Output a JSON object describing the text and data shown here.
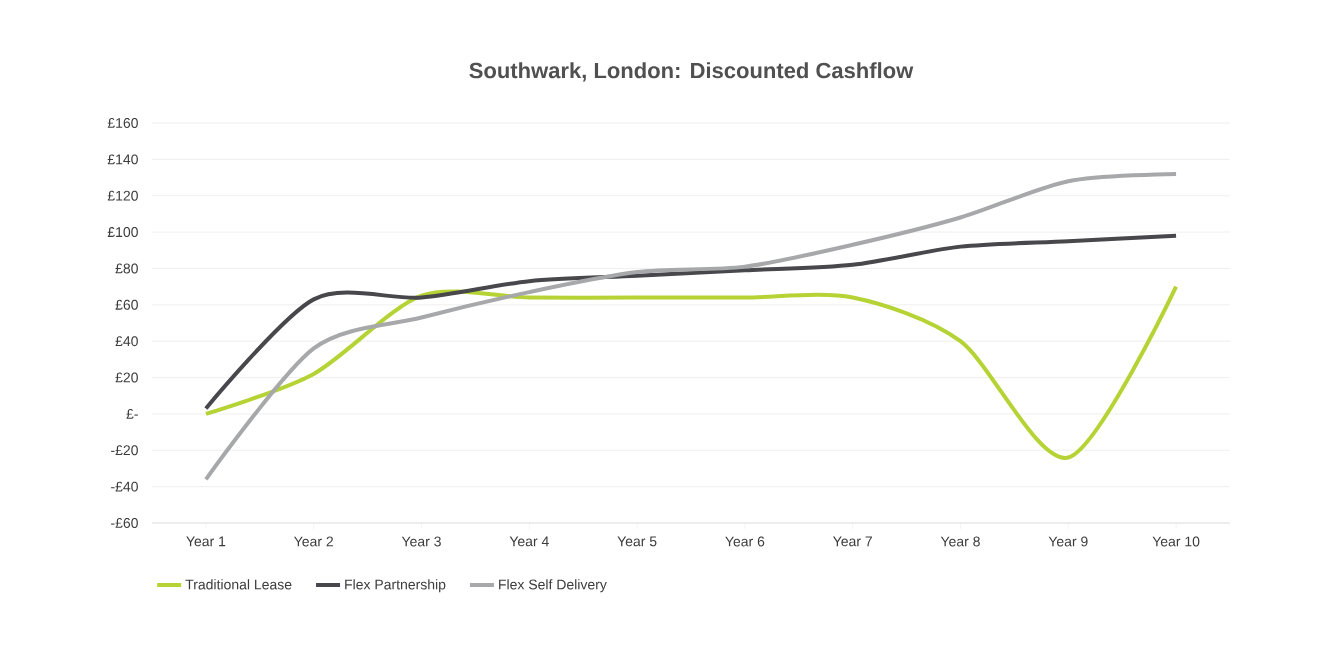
{
  "chart_data": {
    "type": "line",
    "title": "Southwark, London: Discounted Cashflow",
    "categories": [
      "Year 1",
      "Year 2",
      "Year 3",
      "Year 4",
      "Year 5",
      "Year 6",
      "Year 7",
      "Year 8",
      "Year 9",
      "Year 10"
    ],
    "series": [
      {
        "name": "Traditional Lease",
        "color": "#b5d334",
        "values": [
          0,
          22,
          65,
          64,
          64,
          64,
          64,
          40,
          -24,
          70
        ]
      },
      {
        "name": "Flex Partnership",
        "color": "#47474c",
        "values": [
          3,
          63,
          64,
          73,
          76,
          79,
          82,
          92,
          95,
          98
        ]
      },
      {
        "name": "Flex Self Delivery",
        "color": "#a7a8aa",
        "values": [
          -36,
          36,
          53,
          67,
          78,
          81,
          93,
          108,
          128,
          132
        ]
      }
    ],
    "ylim": [
      -60,
      160
    ],
    "yticks": [
      {
        "value": -60,
        "label": "-£60"
      },
      {
        "value": -40,
        "label": "-£40"
      },
      {
        "value": -20,
        "label": "-£20"
      },
      {
        "value": 0,
        "label": "£-"
      },
      {
        "value": 20,
        "label": "£20"
      },
      {
        "value": 40,
        "label": "£40"
      },
      {
        "value": 60,
        "label": "£60"
      },
      {
        "value": 80,
        "label": "£80"
      },
      {
        "value": 100,
        "label": "£100"
      },
      {
        "value": 120,
        "label": "£120"
      },
      {
        "value": 140,
        "label": "£140"
      },
      {
        "value": 160,
        "label": "£160"
      }
    ],
    "grid": "y",
    "legend": "bottom left",
    "marker": "none",
    "line_style": "solid"
  }
}
